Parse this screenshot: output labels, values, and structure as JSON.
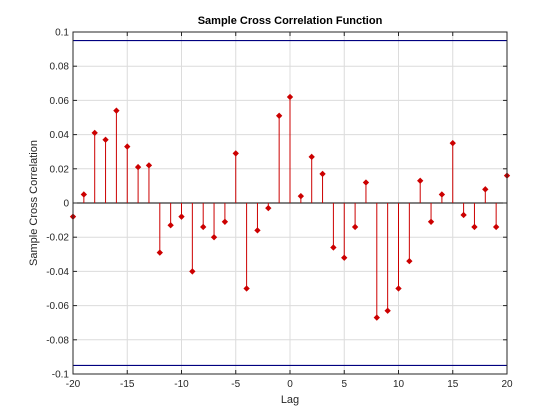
{
  "chart_data": {
    "type": "stem",
    "title": "Sample Cross Correlation Function",
    "xlabel": "Lag",
    "ylabel": "Sample Cross Correlation",
    "xlim": [
      -20,
      20
    ],
    "ylim": [
      -0.1,
      0.1
    ],
    "xticks": [
      -20,
      -15,
      -10,
      -5,
      0,
      5,
      10,
      15,
      20
    ],
    "xtick_labels": [
      "-20",
      "-15",
      "-10",
      "-5",
      "0",
      "5",
      "10",
      "15",
      "20"
    ],
    "yticks": [
      -0.1,
      -0.08,
      -0.06,
      -0.04,
      -0.02,
      0,
      0.02,
      0.04,
      0.06,
      0.08,
      0.1
    ],
    "ytick_labels": [
      "-0.1",
      "-0.08",
      "-0.06",
      "-0.04",
      "-0.02",
      "0",
      "0.02",
      "0.04",
      "0.06",
      "0.08",
      "0.1"
    ],
    "grid": true,
    "confidence_bounds": [
      0.095,
      -0.095
    ],
    "colors": {
      "stem": "#cc0000",
      "bound": "#000080",
      "baseline": "#000000",
      "grid": "#dcdcdc",
      "axes": "#262626"
    },
    "series": [
      {
        "x": [
          -20,
          -19,
          -18,
          -17,
          -16,
          -15,
          -14,
          -13,
          -12,
          -11,
          -10,
          -9,
          -8,
          -7,
          -6,
          -5,
          -4,
          -3,
          -2,
          -1,
          0,
          1,
          2,
          3,
          4,
          5,
          6,
          7,
          8,
          9,
          10,
          11,
          12,
          13,
          14,
          15,
          16,
          17,
          18,
          19,
          20
        ],
        "y": [
          -0.008,
          0.005,
          0.041,
          0.037,
          0.054,
          0.033,
          0.021,
          0.022,
          -0.029,
          -0.013,
          -0.008,
          -0.04,
          -0.014,
          -0.02,
          -0.011,
          0.029,
          -0.05,
          -0.016,
          -0.003,
          0.051,
          0.062,
          0.004,
          0.027,
          0.017,
          -0.026,
          -0.032,
          -0.014,
          0.012,
          -0.067,
          -0.063,
          -0.05,
          -0.034,
          0.013,
          -0.011,
          0.005,
          0.035,
          -0.007,
          -0.014,
          0.008,
          -0.014,
          0.016
        ]
      }
    ]
  }
}
